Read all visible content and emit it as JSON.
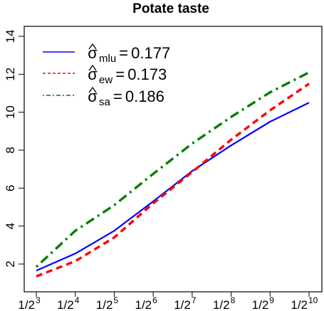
{
  "chart_data": {
    "type": "line",
    "title": "Potate taste",
    "xlabel": "",
    "ylabel": "",
    "x_tick_labels": [
      {
        "base": "1/2",
        "exp": "3"
      },
      {
        "base": "1/2",
        "exp": "4"
      },
      {
        "base": "1/2",
        "exp": "5"
      },
      {
        "base": "1/2",
        "exp": "6"
      },
      {
        "base": "1/2",
        "exp": "7"
      },
      {
        "base": "1/2",
        "exp": "8"
      },
      {
        "base": "1/2",
        "exp": "9"
      },
      {
        "base": "1/2",
        "exp": "10"
      }
    ],
    "x": [
      3,
      4,
      5,
      6,
      7,
      8,
      9,
      10
    ],
    "xlim": [
      3,
      10
    ],
    "ylim": [
      2,
      14
    ],
    "y_ticks": [
      2,
      4,
      6,
      8,
      10,
      12,
      14
    ],
    "grid": false,
    "legend_position": "top-left",
    "series": [
      {
        "name": "mlu",
        "legend_symbol": "σ",
        "legend_value": "0.177",
        "color": "#0000ff",
        "style": "solid",
        "values": [
          1.65,
          2.55,
          3.75,
          5.3,
          6.9,
          8.25,
          9.5,
          10.5
        ]
      },
      {
        "name": "ew",
        "legend_symbol": "σ",
        "legend_value": "0.173",
        "color": "#ff0000",
        "style": "dashed",
        "values": [
          1.35,
          2.15,
          3.4,
          5.2,
          6.85,
          8.55,
          10.1,
          11.5
        ]
      },
      {
        "name": "sa",
        "legend_symbol": "σ",
        "legend_value": "0.186",
        "color": "#008000",
        "style": "dotdash",
        "values": [
          1.85,
          3.75,
          5.1,
          6.75,
          8.35,
          9.75,
          11.05,
          12.1
        ]
      }
    ]
  }
}
